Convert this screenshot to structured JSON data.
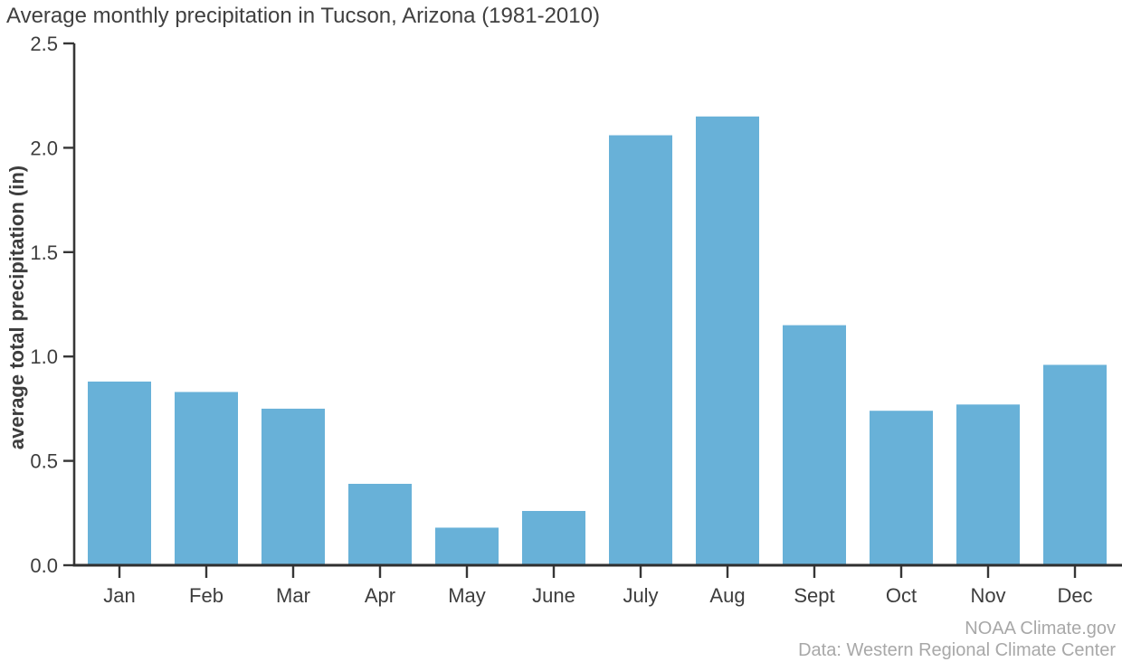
{
  "chart_data": {
    "type": "bar",
    "title": "Average monthly precipitation in Tucson, Arizona (1981-2010)",
    "xlabel": "",
    "ylabel": "average total precipitation (in)",
    "categories": [
      "Jan",
      "Feb",
      "Mar",
      "Apr",
      "May",
      "June",
      "July",
      "Aug",
      "Sept",
      "Oct",
      "Nov",
      "Dec"
    ],
    "values": [
      0.88,
      0.83,
      0.75,
      0.39,
      0.18,
      0.26,
      2.06,
      2.15,
      1.15,
      0.74,
      0.77,
      0.96
    ],
    "ylim": [
      0,
      2.5
    ],
    "yticks": [
      0.0,
      0.5,
      1.0,
      1.5,
      2.0,
      2.5
    ],
    "ytick_decimals": 1,
    "grid": false,
    "legend": null,
    "bar_color": "#68b1d8",
    "axis_color": "#363636",
    "text_color": "#3d3d3d",
    "attribution_color": "#a8a8a8",
    "source": [
      "NOAA Climate.gov",
      "Data: Western Regional Climate Center"
    ]
  }
}
